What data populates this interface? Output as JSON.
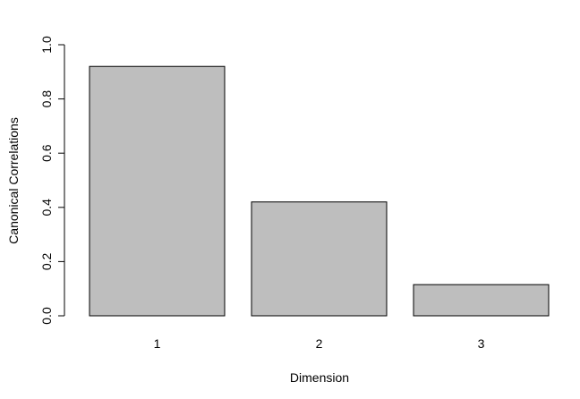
{
  "chart_data": {
    "type": "bar",
    "categories": [
      "1",
      "2",
      "3"
    ],
    "values": [
      0.92,
      0.42,
      0.115
    ],
    "xlabel": "Dimension",
    "ylabel": "Canonical Correlations",
    "ylim": [
      0,
      1
    ],
    "yticks": [
      "0.0",
      "0.2",
      "0.4",
      "0.6",
      "0.8",
      "1.0"
    ],
    "grid": false,
    "legend": "none",
    "bar_color": "#bebebe",
    "border_color": "#000000"
  }
}
